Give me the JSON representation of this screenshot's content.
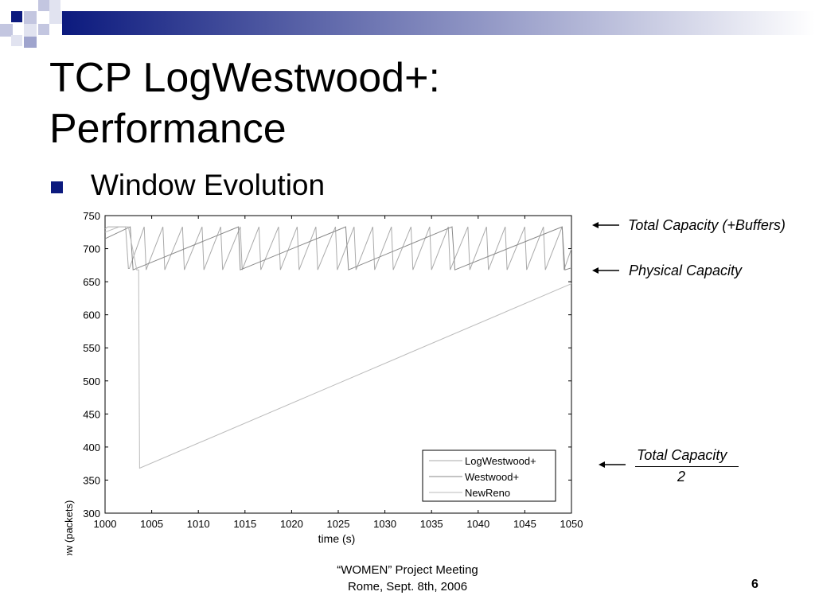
{
  "slide": {
    "title_line1": "TCP LogWestwood+:",
    "title_line2": "Performance",
    "bullet": "Window Evolution",
    "footer_line1": "“WOMEN” Project Meeting",
    "footer_line2": "Rome, Sept. 8th, 2006",
    "slide_number": "6",
    "accent_color": "#0c1a7e",
    "bullet_icon": "square-bullet-icon"
  },
  "annotations": {
    "total_capacity_buffers": "Total Capacity (+Buffers)",
    "physical_capacity": "Physical Capacity",
    "total_capacity_half_num": "Total Capacity",
    "total_capacity_half_den": "2"
  },
  "chart_data": {
    "type": "line",
    "title": "",
    "xlabel": "time (s)",
    "ylabel": "Congestion Window (packets)",
    "xlim": [
      1000,
      1050
    ],
    "ylim": [
      300,
      750
    ],
    "xticks": [
      1000,
      1005,
      1010,
      1015,
      1020,
      1025,
      1030,
      1035,
      1040,
      1045,
      1050
    ],
    "yticks": [
      300,
      350,
      400,
      450,
      500,
      550,
      600,
      650,
      700,
      750
    ],
    "grid": false,
    "legend_position": "bottom-right",
    "series": [
      {
        "name": "LogWestwood+",
        "color": "#aaaaaa",
        "description": "sawtooth oscillating between ~668 and ~733 packets",
        "x": [
          1000,
          1000.3,
          1002.2,
          1002.5,
          1002.6,
          1004.2,
          1004.4,
          1006.2,
          1006.4,
          1008.3,
          1008.5,
          1010.4,
          1010.6,
          1012.4,
          1012.6,
          1014.5,
          1014.7,
          1016.5,
          1016.7,
          1018.6,
          1018.8,
          1020.6,
          1020.8,
          1022.6,
          1022.8,
          1024.7,
          1024.9,
          1026.7,
          1026.9,
          1028.7,
          1028.9,
          1030.7,
          1030.9,
          1032.8,
          1033.0,
          1034.8,
          1035.0,
          1036.8,
          1037.0,
          1038.9,
          1039.1,
          1040.9,
          1041.1,
          1042.9,
          1043.1,
          1045.0,
          1045.2,
          1047.0,
          1047.2,
          1049.0,
          1049.2,
          1050
        ],
        "y": [
          730,
          733,
          733,
          670,
          670,
          733,
          668,
          733,
          668,
          733,
          668,
          733,
          668,
          733,
          668,
          733,
          668,
          733,
          668,
          733,
          668,
          733,
          668,
          733,
          668,
          733,
          668,
          733,
          668,
          733,
          668,
          733,
          668,
          733,
          668,
          733,
          668,
          733,
          668,
          733,
          668,
          733,
          668,
          733,
          668,
          733,
          668,
          733,
          668,
          733,
          668,
          700
        ]
      },
      {
        "name": "Westwood+",
        "color": "#888888",
        "description": "slow linear ramps from ~668 to ~733 with drops",
        "x": [
          1000,
          1002.7,
          1003.0,
          1014.3,
          1014.5,
          1025.8,
          1026.1,
          1037.2,
          1037.5,
          1049.0,
          1049.3,
          1050
        ],
        "y": [
          715,
          733,
          668,
          733,
          668,
          733,
          668,
          733,
          668,
          733,
          668,
          671
        ]
      },
      {
        "name": "NewReno",
        "color": "#bbbbbb",
        "description": "early sawtooth then drop to ~368 at ~1003.7 s followed by linear growth",
        "x": [
          1000,
          1001.5,
          1002.5,
          1003.4,
          1003.6,
          1003.7,
          1050
        ],
        "y": [
          725,
          733,
          733,
          668,
          668,
          368,
          647
        ]
      }
    ]
  }
}
